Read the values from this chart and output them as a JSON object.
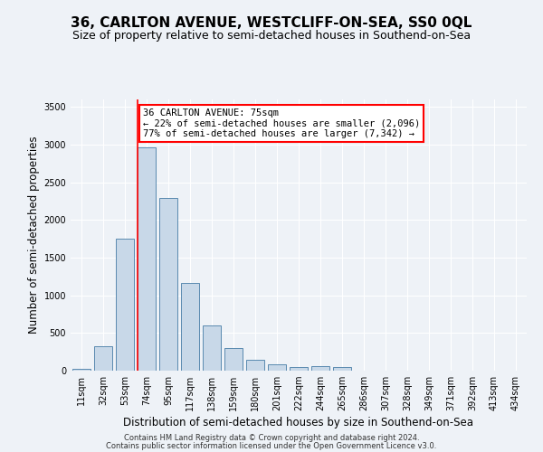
{
  "title": "36, CARLTON AVENUE, WESTCLIFF-ON-SEA, SS0 0QL",
  "subtitle": "Size of property relative to semi-detached houses in Southend-on-Sea",
  "xlabel": "Distribution of semi-detached houses by size in Southend-on-Sea",
  "ylabel": "Number of semi-detached properties",
  "footnote1": "Contains HM Land Registry data © Crown copyright and database right 2024.",
  "footnote2": "Contains public sector information licensed under the Open Government Licence v3.0.",
  "categories": [
    "11sqm",
    "32sqm",
    "53sqm",
    "74sqm",
    "95sqm",
    "117sqm",
    "138sqm",
    "159sqm",
    "180sqm",
    "201sqm",
    "222sqm",
    "244sqm",
    "265sqm",
    "286sqm",
    "307sqm",
    "328sqm",
    "349sqm",
    "371sqm",
    "392sqm",
    "413sqm",
    "434sqm"
  ],
  "values": [
    20,
    330,
    1750,
    2960,
    2290,
    1170,
    600,
    300,
    145,
    80,
    50,
    55,
    45,
    0,
    0,
    0,
    0,
    0,
    0,
    0,
    0
  ],
  "bar_color": "#c8d8e8",
  "bar_edge_color": "#5a8ab0",
  "property_line_bin": 3,
  "annotation_text": "36 CARLTON AVENUE: 75sqm\n← 22% of semi-detached houses are smaller (2,096)\n77% of semi-detached houses are larger (7,342) →",
  "annotation_box_color": "white",
  "annotation_box_edge": "red",
  "property_line_color": "red",
  "ylim": [
    0,
    3600
  ],
  "yticks": [
    0,
    500,
    1000,
    1500,
    2000,
    2500,
    3000,
    3500
  ],
  "background_color": "#eef2f7",
  "grid_color": "white",
  "title_fontsize": 11,
  "subtitle_fontsize": 9,
  "xlabel_fontsize": 8.5,
  "ylabel_fontsize": 8.5,
  "tick_fontsize": 7,
  "annot_fontsize": 7.5,
  "footnote_fontsize": 6
}
